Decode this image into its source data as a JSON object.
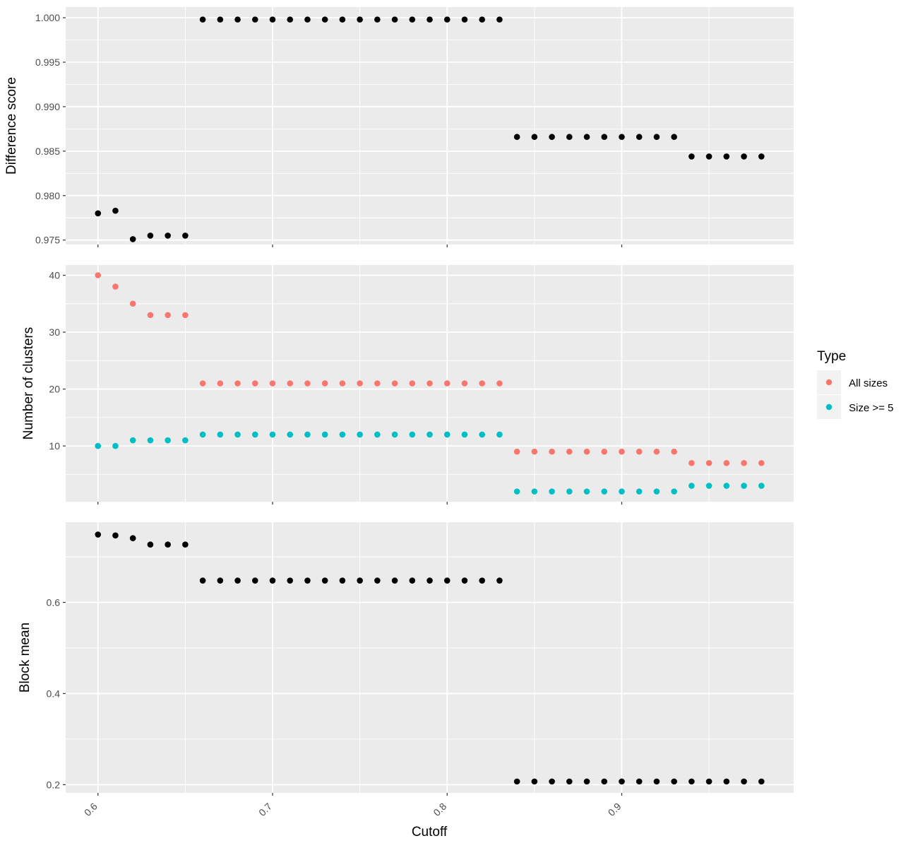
{
  "chart_data": [
    {
      "type": "scatter",
      "ylabel": "Difference score",
      "ylim": [
        0.9745,
        1.0012
      ],
      "y_ticks": [
        "0.975",
        "0.980",
        "0.985",
        "0.990",
        "0.995",
        "1.000"
      ],
      "series": [
        {
          "color": "#000000",
          "points": [
            [
              0.6,
              0.978
            ],
            [
              0.61,
              0.9783
            ],
            [
              0.62,
              0.9751
            ],
            [
              0.63,
              0.9755
            ],
            [
              0.64,
              0.9755
            ],
            [
              0.65,
              0.9755
            ],
            [
              0.66,
              0.9998
            ],
            [
              0.67,
              0.9998
            ],
            [
              0.68,
              0.9998
            ],
            [
              0.69,
              0.9998
            ],
            [
              0.7,
              0.9998
            ],
            [
              0.71,
              0.9998
            ],
            [
              0.72,
              0.9998
            ],
            [
              0.73,
              0.9998
            ],
            [
              0.74,
              0.9998
            ],
            [
              0.75,
              0.9998
            ],
            [
              0.76,
              0.9998
            ],
            [
              0.77,
              0.9998
            ],
            [
              0.78,
              0.9998
            ],
            [
              0.79,
              0.9998
            ],
            [
              0.8,
              0.9998
            ],
            [
              0.81,
              0.9998
            ],
            [
              0.82,
              0.9998
            ],
            [
              0.83,
              0.9998
            ],
            [
              0.84,
              0.9866
            ],
            [
              0.85,
              0.9866
            ],
            [
              0.86,
              0.9866
            ],
            [
              0.87,
              0.9866
            ],
            [
              0.88,
              0.9866
            ],
            [
              0.89,
              0.9866
            ],
            [
              0.9,
              0.9866
            ],
            [
              0.91,
              0.9866
            ],
            [
              0.92,
              0.9866
            ],
            [
              0.93,
              0.9866
            ],
            [
              0.94,
              0.9844
            ],
            [
              0.95,
              0.9844
            ],
            [
              0.96,
              0.9844
            ],
            [
              0.97,
              0.9844
            ],
            [
              0.98,
              0.9844
            ]
          ]
        }
      ]
    },
    {
      "type": "scatter",
      "ylabel": "Number of clusters",
      "ylim": [
        0.2,
        41.8
      ],
      "y_ticks": [
        "10",
        "20",
        "30",
        "40"
      ],
      "legend": {
        "title": "Type",
        "position": "right",
        "entries": [
          "All sizes",
          "Size >= 5"
        ]
      },
      "series": [
        {
          "name": "All sizes",
          "color": "#F8766D",
          "points": [
            [
              0.6,
              40
            ],
            [
              0.61,
              38
            ],
            [
              0.62,
              35
            ],
            [
              0.63,
              33
            ],
            [
              0.64,
              33
            ],
            [
              0.65,
              33
            ],
            [
              0.66,
              21
            ],
            [
              0.67,
              21
            ],
            [
              0.68,
              21
            ],
            [
              0.69,
              21
            ],
            [
              0.7,
              21
            ],
            [
              0.71,
              21
            ],
            [
              0.72,
              21
            ],
            [
              0.73,
              21
            ],
            [
              0.74,
              21
            ],
            [
              0.75,
              21
            ],
            [
              0.76,
              21
            ],
            [
              0.77,
              21
            ],
            [
              0.78,
              21
            ],
            [
              0.79,
              21
            ],
            [
              0.8,
              21
            ],
            [
              0.81,
              21
            ],
            [
              0.82,
              21
            ],
            [
              0.83,
              21
            ],
            [
              0.84,
              9
            ],
            [
              0.85,
              9
            ],
            [
              0.86,
              9
            ],
            [
              0.87,
              9
            ],
            [
              0.88,
              9
            ],
            [
              0.89,
              9
            ],
            [
              0.9,
              9
            ],
            [
              0.91,
              9
            ],
            [
              0.92,
              9
            ],
            [
              0.93,
              9
            ],
            [
              0.94,
              7
            ],
            [
              0.95,
              7
            ],
            [
              0.96,
              7
            ],
            [
              0.97,
              7
            ],
            [
              0.98,
              7
            ]
          ]
        },
        {
          "name": "Size >= 5",
          "color": "#00BFC4",
          "points": [
            [
              0.6,
              10
            ],
            [
              0.61,
              10
            ],
            [
              0.62,
              11
            ],
            [
              0.63,
              11
            ],
            [
              0.64,
              11
            ],
            [
              0.65,
              11
            ],
            [
              0.66,
              12
            ],
            [
              0.67,
              12
            ],
            [
              0.68,
              12
            ],
            [
              0.69,
              12
            ],
            [
              0.7,
              12
            ],
            [
              0.71,
              12
            ],
            [
              0.72,
              12
            ],
            [
              0.73,
              12
            ],
            [
              0.74,
              12
            ],
            [
              0.75,
              12
            ],
            [
              0.76,
              12
            ],
            [
              0.77,
              12
            ],
            [
              0.78,
              12
            ],
            [
              0.79,
              12
            ],
            [
              0.8,
              12
            ],
            [
              0.81,
              12
            ],
            [
              0.82,
              12
            ],
            [
              0.83,
              12
            ],
            [
              0.84,
              2
            ],
            [
              0.85,
              2
            ],
            [
              0.86,
              2
            ],
            [
              0.87,
              2
            ],
            [
              0.88,
              2
            ],
            [
              0.89,
              2
            ],
            [
              0.9,
              2
            ],
            [
              0.91,
              2
            ],
            [
              0.92,
              2
            ],
            [
              0.93,
              2
            ],
            [
              0.94,
              3
            ],
            [
              0.95,
              3
            ],
            [
              0.96,
              3
            ],
            [
              0.97,
              3
            ],
            [
              0.98,
              3
            ]
          ]
        }
      ]
    },
    {
      "type": "scatter",
      "ylabel": "Block mean",
      "xlabel": "Cutoff",
      "ylim": [
        0.182,
        0.776
      ],
      "y_ticks": [
        "0.2",
        "0.4",
        "0.6"
      ],
      "series": [
        {
          "color": "#000000",
          "points": [
            [
              0.6,
              0.749
            ],
            [
              0.61,
              0.747
            ],
            [
              0.62,
              0.741
            ],
            [
              0.63,
              0.727
            ],
            [
              0.64,
              0.727
            ],
            [
              0.65,
              0.727
            ],
            [
              0.66,
              0.648
            ],
            [
              0.67,
              0.648
            ],
            [
              0.68,
              0.648
            ],
            [
              0.69,
              0.648
            ],
            [
              0.7,
              0.648
            ],
            [
              0.71,
              0.648
            ],
            [
              0.72,
              0.648
            ],
            [
              0.73,
              0.648
            ],
            [
              0.74,
              0.648
            ],
            [
              0.75,
              0.648
            ],
            [
              0.76,
              0.648
            ],
            [
              0.77,
              0.648
            ],
            [
              0.78,
              0.648
            ],
            [
              0.79,
              0.648
            ],
            [
              0.8,
              0.648
            ],
            [
              0.81,
              0.648
            ],
            [
              0.82,
              0.648
            ],
            [
              0.83,
              0.648
            ],
            [
              0.84,
              0.207
            ],
            [
              0.85,
              0.207
            ],
            [
              0.86,
              0.207
            ],
            [
              0.87,
              0.207
            ],
            [
              0.88,
              0.207
            ],
            [
              0.89,
              0.207
            ],
            [
              0.9,
              0.207
            ],
            [
              0.91,
              0.207
            ],
            [
              0.92,
              0.207
            ],
            [
              0.93,
              0.207
            ],
            [
              0.94,
              0.207
            ],
            [
              0.95,
              0.207
            ],
            [
              0.96,
              0.207
            ],
            [
              0.97,
              0.207
            ],
            [
              0.98,
              0.207
            ]
          ]
        }
      ]
    }
  ],
  "x_axis": {
    "title": "Cutoff",
    "xlim": [
      0.5815,
      0.9985
    ],
    "ticks": [
      "0.6",
      "0.7",
      "0.8",
      "0.9"
    ]
  },
  "style": {
    "panel_background": "#EBEBEB",
    "grid_color": "#FFFFFF"
  }
}
